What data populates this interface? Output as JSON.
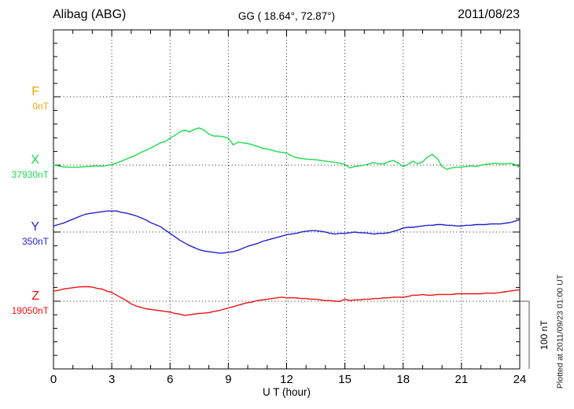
{
  "header": {
    "station": "Alibag (ABG)",
    "coords": "GG ( 18.64°,  72.87°)",
    "date": "2011/08/23"
  },
  "axis": {
    "xlabel": "U T (hour)",
    "x_ticks": [
      "0",
      "3",
      "6",
      "9",
      "12",
      "15",
      "18",
      "21",
      "24"
    ]
  },
  "scale_bar": {
    "label": "100 nT",
    "nT": 100
  },
  "footer_note": "Plotted at 2011/09/23 01:00 UT",
  "chart_data": {
    "type": "line",
    "title": "Alibag (ABG) magnetogram 2011/08/23",
    "xlabel": "U T (hour)",
    "x_range": [
      0,
      24
    ],
    "x_tick_step_hours": 3,
    "minor_x_tick_step_hours": 1,
    "sample_step_hours": 0.25,
    "grid": "dotted vertical lines every 3 h; dotted horizontal line at each channel baseline",
    "y_scale": {
      "scale_bar_nT": 100,
      "baseline_separation_nT": 100,
      "minor_tick_nT": 20
    },
    "series": [
      {
        "name": "F",
        "color": "#efa50f",
        "baseline_label": "0nT",
        "baseline_nT": 0,
        "offsets_nT": []
      },
      {
        "name": "X",
        "color": "#1ddb4f",
        "baseline_label": "37930nT",
        "baseline_nT": 37930,
        "offsets_nT": [
          0,
          -1,
          -2.5,
          -3,
          -3,
          -3,
          -2.5,
          -2,
          -1.5,
          -1,
          -1.5,
          -0.5,
          1,
          3,
          6,
          9,
          12,
          15,
          19,
          22,
          25,
          29,
          33,
          35,
          40,
          44,
          49,
          52,
          49,
          53,
          55,
          52,
          46,
          43,
          43,
          42,
          40,
          30,
          34,
          33,
          32,
          30,
          28,
          25,
          24,
          22,
          20,
          19,
          18,
          14,
          11,
          10,
          9,
          8.5,
          8,
          7,
          6,
          5,
          4,
          3,
          1,
          -4,
          -2,
          -1,
          0,
          2,
          4,
          2,
          2,
          5,
          7,
          3,
          -2,
          1,
          6,
          2,
          5,
          12,
          16,
          10,
          -2,
          -6,
          -4,
          -3,
          -3,
          -2,
          -1,
          -2,
          0,
          1,
          2,
          3,
          2,
          2,
          3,
          1,
          -4
        ]
      },
      {
        "name": "Y",
        "color": "#2222cf",
        "baseline_label": "350nT",
        "baseline_nT": 350,
        "offsets_nT": [
          9,
          11,
          13,
          16,
          19,
          22,
          25,
          27,
          28,
          29,
          30,
          31,
          31,
          31,
          29,
          28,
          26,
          24,
          21,
          18,
          14,
          11,
          8,
          3,
          -2,
          -7,
          -12,
          -16,
          -20,
          -23,
          -26,
          -28,
          -29,
          -30,
          -31,
          -31,
          -30,
          -29,
          -27,
          -24,
          -21,
          -19,
          -17,
          -14,
          -12,
          -10,
          -8,
          -6,
          -4,
          -3,
          -2,
          0,
          1,
          2,
          2,
          1,
          0,
          -2,
          -3,
          -2,
          -2,
          -1,
          0,
          -1,
          -1,
          -2,
          -3,
          -2,
          -2,
          -1,
          1,
          3,
          6,
          7,
          7,
          8,
          9,
          10,
          10,
          11,
          11,
          10,
          10,
          9,
          9,
          10,
          10,
          11,
          11,
          11,
          12,
          12,
          12,
          13,
          14,
          16,
          18
        ]
      },
      {
        "name": "Z",
        "color": "#ee1212",
        "baseline_label": "19050nT",
        "baseline_nT": 19050,
        "offsets_nT": [
          15,
          16,
          18,
          19,
          20,
          21,
          21.5,
          21.5,
          21,
          19,
          18,
          15,
          13,
          9,
          5,
          1,
          -4,
          -7,
          -9,
          -11,
          -12,
          -13,
          -14,
          -15,
          -16,
          -18,
          -19,
          -21,
          -20,
          -19,
          -18,
          -17.5,
          -17,
          -15,
          -14,
          -12,
          -10,
          -8,
          -6,
          -4,
          -2,
          -1,
          1,
          2,
          3,
          4,
          5,
          6,
          5,
          5,
          5,
          4,
          4,
          3,
          3,
          2,
          1,
          1,
          0,
          0,
          3,
          1,
          2,
          2,
          3,
          3,
          4,
          4,
          5,
          5,
          6,
          6,
          6,
          7,
          9,
          9,
          10,
          9,
          9,
          10,
          10,
          10,
          10,
          11,
          11,
          11,
          11,
          11,
          11,
          12,
          12,
          12,
          13,
          14,
          15,
          16,
          17
        ]
      }
    ]
  }
}
